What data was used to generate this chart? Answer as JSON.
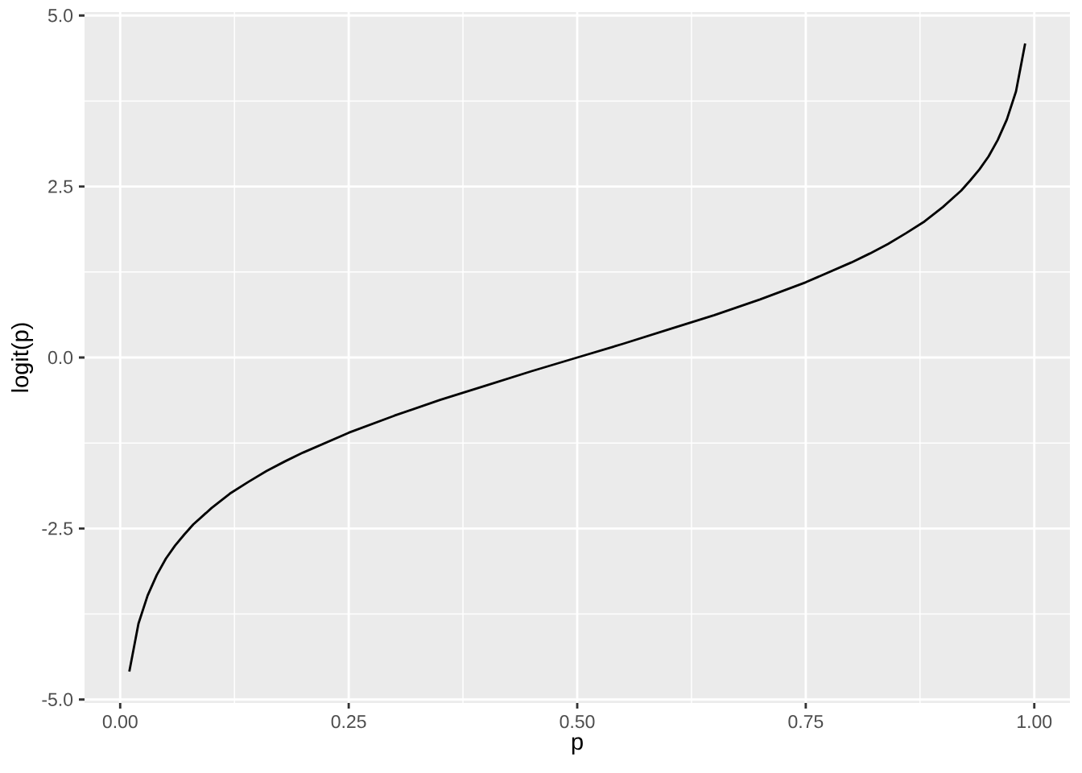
{
  "chart_data": {
    "type": "line",
    "xlabel": "p",
    "ylabel": "logit(p)",
    "color": "#000000",
    "x": [
      0.01,
      0.02,
      0.03,
      0.04,
      0.05,
      0.06,
      0.07,
      0.08,
      0.1,
      0.12,
      0.14,
      0.16,
      0.18,
      0.2,
      0.25,
      0.3,
      0.35,
      0.4,
      0.45,
      0.5,
      0.55,
      0.6,
      0.65,
      0.7,
      0.75,
      0.8,
      0.82,
      0.84,
      0.86,
      0.88,
      0.9,
      0.92,
      0.93,
      0.94,
      0.95,
      0.96,
      0.97,
      0.98,
      0.99
    ],
    "values": [
      -4.59,
      -3.89,
      -3.48,
      -3.18,
      -2.94,
      -2.75,
      -2.59,
      -2.44,
      -2.2,
      -1.99,
      -1.82,
      -1.66,
      -1.52,
      -1.39,
      -1.1,
      -0.85,
      -0.62,
      -0.41,
      -0.2,
      0.0,
      0.2,
      0.41,
      0.62,
      0.85,
      1.1,
      1.39,
      1.52,
      1.66,
      1.82,
      1.99,
      2.2,
      2.44,
      2.59,
      2.75,
      2.94,
      3.18,
      3.48,
      3.89,
      4.59
    ],
    "xlim": [
      -0.039,
      1.039
    ],
    "ylim": [
      -5.05,
      5.05
    ],
    "xticks": [
      {
        "value": 0,
        "label": "0.00"
      },
      0.25,
      {
        "value": 0.5,
        "label": "0.50"
      },
      0.75,
      {
        "value": 1,
        "label": "1.00"
      }
    ],
    "yticks": [
      {
        "value": -5,
        "label": "-5.0"
      },
      -2.5,
      {
        "value": 0,
        "label": "0.0"
      },
      2.5,
      {
        "value": 5,
        "label": "5.0"
      }
    ],
    "grid": true
  }
}
